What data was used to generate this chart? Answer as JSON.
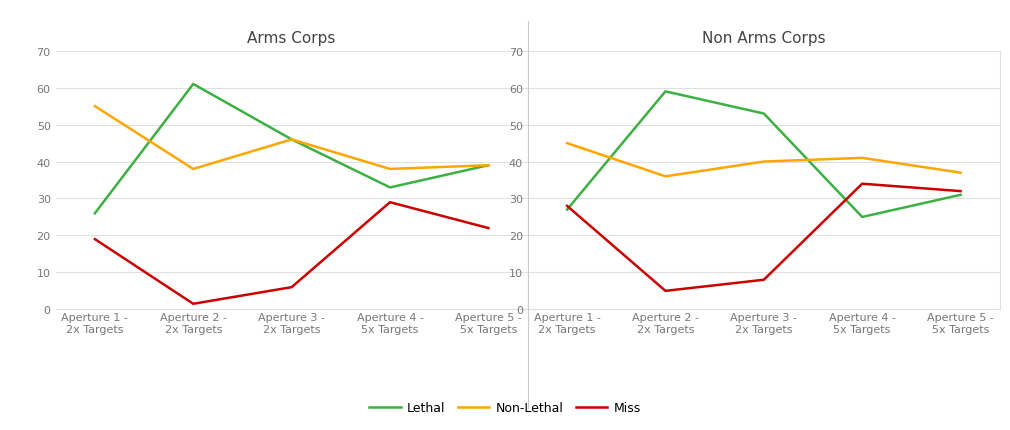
{
  "arms_corps": {
    "title": "Arms Corps",
    "categories": [
      "Aperture 1 -\n2x Targets",
      "Aperture 2 -\n2x Targets",
      "Aperture 3 -\n2x Targets",
      "Aperture 4 -\n5x Targets",
      "Aperture 5 -\n5x Targets"
    ],
    "lethal": [
      26,
      61,
      46,
      33,
      39
    ],
    "non_lethal": [
      55,
      38,
      46,
      38,
      39
    ],
    "miss": [
      19,
      1.5,
      6,
      29,
      22
    ]
  },
  "non_arms_corps": {
    "title": "Non Arms Corps",
    "categories": [
      "Aperture 1 -\n2x Targets",
      "Aperture 2 -\n2x Targets",
      "Aperture 3 -\n2x Targets",
      "Aperture 4 -\n5x Targets",
      "Aperture 5 -\n5x Targets"
    ],
    "lethal": [
      27,
      59,
      53,
      25,
      31
    ],
    "non_lethal": [
      45,
      36,
      40,
      41,
      37
    ],
    "miss": [
      28,
      5,
      8,
      34,
      32
    ]
  },
  "ylim": [
    0,
    70
  ],
  "yticks": [
    0,
    10,
    20,
    30,
    40,
    50,
    60,
    70
  ],
  "colors": {
    "lethal": "#3CB043",
    "non_lethal": "#FFA500",
    "miss": "#CC0000"
  },
  "legend_labels": [
    "Lethal",
    "Non-Lethal",
    "Miss"
  ],
  "background_color": "#FFFFFF",
  "plot_bg_color": "#FFFFFF",
  "grid_color": "#E0E0E0",
  "line_width": 1.8,
  "title_fontsize": 11,
  "tick_fontsize": 8,
  "tick_color": "#777777"
}
